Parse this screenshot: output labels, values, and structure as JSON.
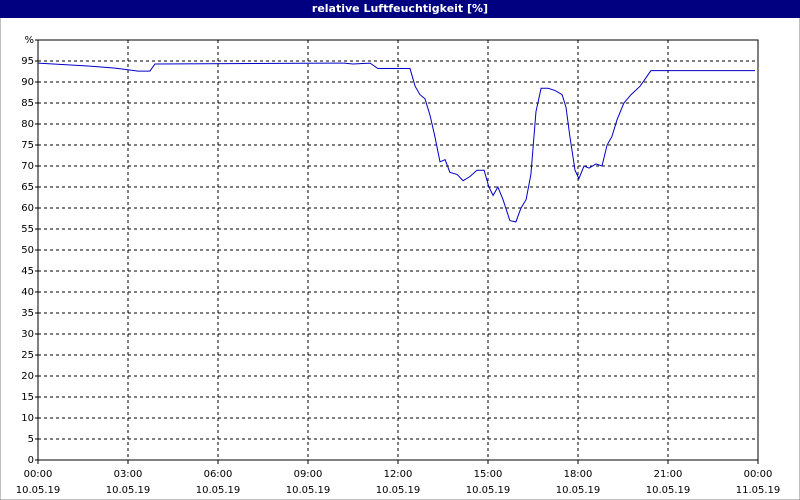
{
  "chart_data": {
    "type": "line",
    "title": "relative Luftfeuchtigkeit [%]",
    "x": [
      0,
      1.67,
      2.57,
      3.33,
      3.73,
      3.9,
      9.73,
      10.2,
      10.5,
      11.07,
      11.33,
      12.4,
      12.57,
      12.73,
      12.9,
      13.07,
      13.23,
      13.4,
      13.57,
      13.73,
      13.97,
      14.17,
      14.4,
      14.63,
      14.87,
      15.03,
      15.17,
      15.33,
      15.5,
      15.73,
      15.93,
      16.1,
      16.27,
      16.43,
      16.6,
      16.77,
      17.0,
      17.23,
      17.47,
      17.6,
      17.73,
      17.9,
      18.03,
      18.2,
      18.37,
      18.6,
      18.8,
      18.97,
      19.13,
      19.3,
      19.53,
      19.77,
      20.07,
      20.43,
      23.9
    ],
    "series": [
      {
        "name": "relative Luftfeuchtigkeit",
        "color": "#0000c8",
        "values": [
          94.5,
          93.8,
          93.3,
          92.6,
          92.6,
          94.3,
          94.5,
          94.5,
          94.3,
          94.5,
          93.2,
          93.2,
          89,
          87,
          86,
          82,
          77,
          71,
          71.5,
          68.5,
          68,
          66.5,
          67.5,
          69,
          69,
          65,
          63,
          65,
          62,
          57,
          56.7,
          60,
          62,
          68,
          83,
          88.5,
          88.5,
          88,
          87,
          84,
          77,
          69,
          67,
          70,
          69.5,
          70.5,
          70,
          75,
          77,
          81,
          85,
          87,
          89,
          92.7,
          92.7
        ]
      }
    ],
    "xlim": [
      0,
      24
    ],
    "ylim": [
      0,
      100
    ],
    "xticks": [
      {
        "value": 0,
        "label": "00:00"
      },
      {
        "value": 3,
        "label": "03:00"
      },
      {
        "value": 6,
        "label": "06:00"
      },
      {
        "value": 9,
        "label": "09:00"
      },
      {
        "value": 12,
        "label": "12:00"
      },
      {
        "value": 15,
        "label": "15:00"
      },
      {
        "value": 18,
        "label": "18:00"
      },
      {
        "value": 21,
        "label": "21:00"
      },
      {
        "value": 24,
        "label": "00:00"
      }
    ],
    "xtick_dates": [
      "10.05.19",
      "10.05.19",
      "10.05.19",
      "10.05.19",
      "10.05.19",
      "10.05.19",
      "10.05.19",
      "10.05.19",
      "11.05.19"
    ],
    "yticks": [
      0,
      5,
      10,
      15,
      20,
      25,
      30,
      35,
      40,
      45,
      50,
      55,
      60,
      65,
      70,
      75,
      80,
      85,
      90,
      95,
      {
        "value": 100,
        "label": "%"
      }
    ],
    "grid": true
  }
}
